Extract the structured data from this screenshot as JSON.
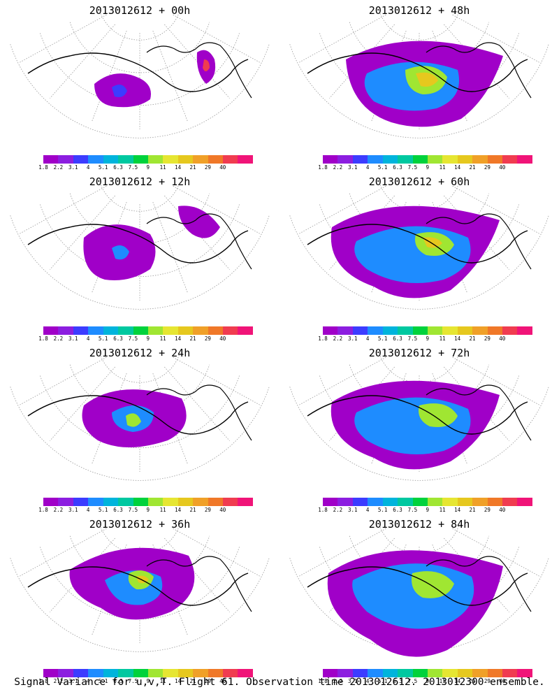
{
  "panels": [
    {
      "title": "2013012612 + 00h"
    },
    {
      "title": "2013012612 + 48h"
    },
    {
      "title": "2013012612 + 12h"
    },
    {
      "title": "2013012612 + 60h"
    },
    {
      "title": "2013012612 + 24h"
    },
    {
      "title": "2013012612 + 72h"
    },
    {
      "title": "2013012612 + 36h"
    },
    {
      "title": "2013012612 + 84h"
    }
  ],
  "colorbar": {
    "labels": [
      "1.8",
      "2.2",
      "3.1",
      "4",
      "5.1",
      "6.3",
      "7.5",
      "9",
      "11",
      "14",
      "21",
      "29",
      "40"
    ],
    "colors": [
      "#a000c8",
      "#8c1ee0",
      "#3c3cff",
      "#1e8cff",
      "#00b4dc",
      "#00c8a0",
      "#00d23c",
      "#a0e632",
      "#e6e632",
      "#e6c81e",
      "#f0a028",
      "#f07828",
      "#f03c50",
      "#f01478"
    ]
  },
  "footer": {
    "caption": "Signal Variance for u,v,T. Flight 61. Observation time 2013012612. 2013012300 ensemble."
  }
}
